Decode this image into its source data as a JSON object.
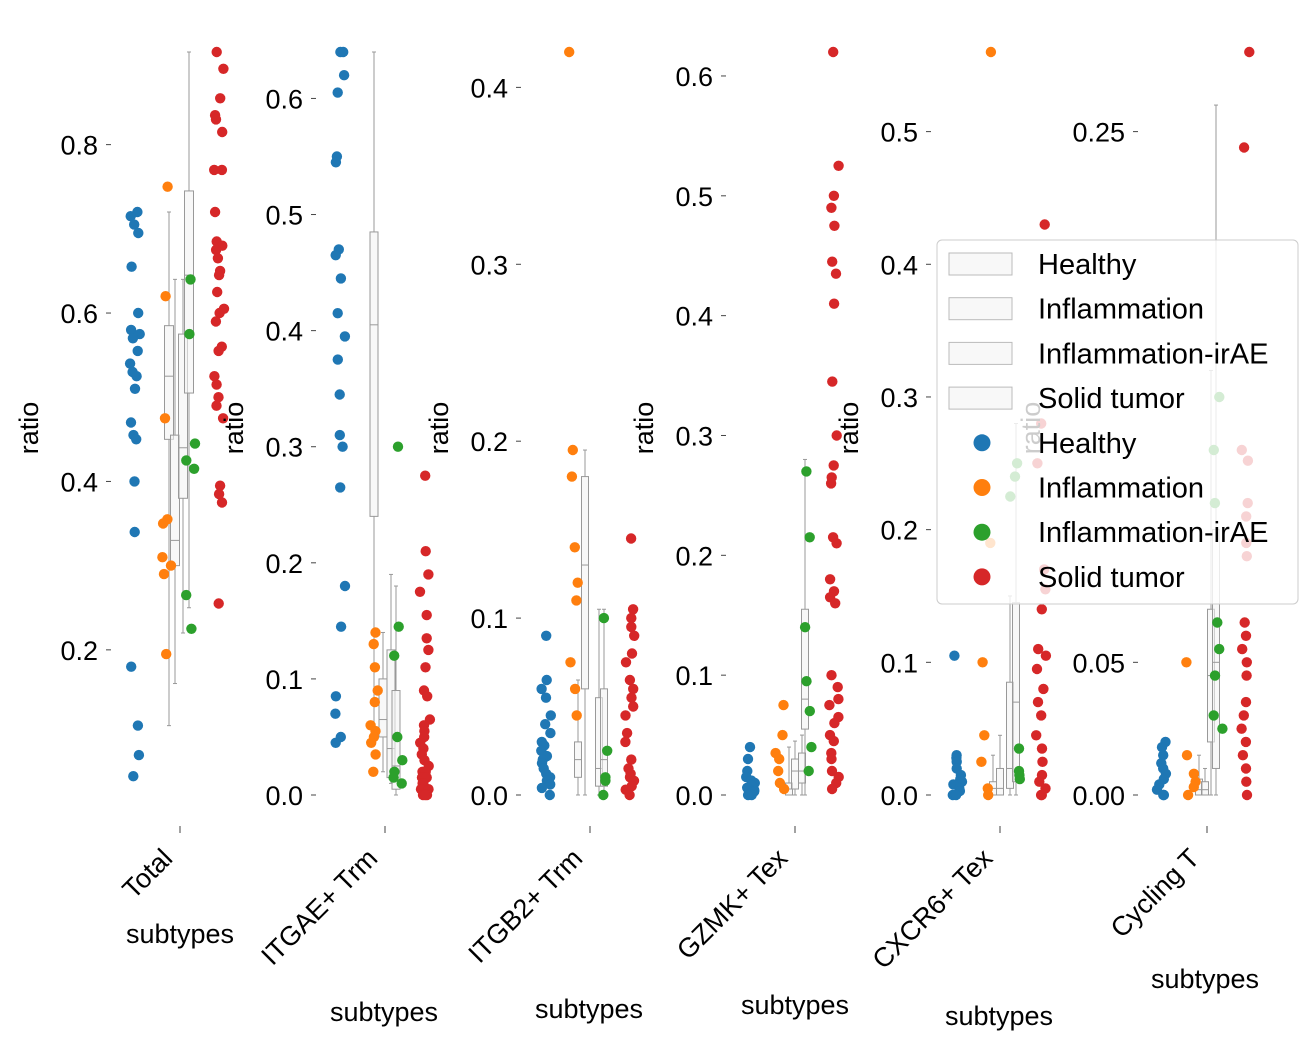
{
  "chart_data": {
    "type": "scatter",
    "groups": [
      "Healthy",
      "Inflammation",
      "Inflammation-irAE",
      "Solid tumor"
    ],
    "colors": {
      "Healthy": "#1f77b4",
      "Inflammation": "#ff7f0e",
      "Inflammation-irAE": "#2ca02c",
      "Solid tumor": "#d62728"
    },
    "legend": {
      "placement": "center-right",
      "box_entries": [
        "Healthy",
        "Inflammation",
        "Inflammation-irAE",
        "Solid tumor"
      ],
      "point_entries": [
        "Healthy",
        "Inflammation",
        "Inflammation-irAE",
        "Solid tumor"
      ]
    },
    "panels": [
      {
        "category": "Total",
        "xlabel": "subtypes",
        "ylabel": "ratio",
        "ylim": [
          0.03,
          0.91
        ],
        "yticks": [
          {
            "v": 0.2,
            "label": "0.2"
          },
          {
            "v": 0.4,
            "label": "0.4"
          },
          {
            "v": 0.6,
            "label": "0.6"
          },
          {
            "v": 0.8,
            "label": "0.8"
          }
        ],
        "boxes": {
          "Healthy": {
            "whislo": 0.11,
            "q1": 0.45,
            "med": 0.525,
            "q3": 0.585,
            "whishi": 0.72
          },
          "Inflammation": {
            "whislo": 0.16,
            "q1": 0.3,
            "med": 0.33,
            "q3": 0.455,
            "whishi": 0.64
          },
          "Inflammation-irAE": {
            "whislo": 0.22,
            "q1": 0.38,
            "med": 0.44,
            "q3": 0.575,
            "whishi": 0.64
          },
          "Solid tumor": {
            "whislo": 0.25,
            "q1": 0.505,
            "med": 0.645,
            "q3": 0.745,
            "whishi": 0.91
          }
        },
        "points": {
          "Healthy": [
            0.72,
            0.715,
            0.705,
            0.695,
            0.655,
            0.6,
            0.58,
            0.575,
            0.57,
            0.555,
            0.54,
            0.53,
            0.525,
            0.51,
            0.47,
            0.455,
            0.45,
            0.4,
            0.34,
            0.18,
            0.11,
            0.075,
            0.05
          ],
          "Inflammation": [
            0.75,
            0.62,
            0.475,
            0.355,
            0.35,
            0.31,
            0.3,
            0.29,
            0.195
          ],
          "Inflammation-irAE": [
            0.64,
            0.575,
            0.445,
            0.425,
            0.415,
            0.265,
            0.225
          ],
          "Solid tumor": [
            0.91,
            0.89,
            0.855,
            0.835,
            0.83,
            0.815,
            0.77,
            0.77,
            0.72,
            0.685,
            0.68,
            0.675,
            0.665,
            0.65,
            0.645,
            0.625,
            0.605,
            0.6,
            0.59,
            0.56,
            0.555,
            0.525,
            0.515,
            0.5,
            0.49,
            0.475,
            0.395,
            0.385,
            0.375,
            0.255
          ]
        }
      },
      {
        "category": "ITGAE+ Trm",
        "xlabel": "subtypes",
        "ylabel": "ratio",
        "ylim": [
          0,
          0.64
        ],
        "yticks": [
          {
            "v": 0.0,
            "label": "0.0"
          },
          {
            "v": 0.1,
            "label": "0.1"
          },
          {
            "v": 0.2,
            "label": "0.2"
          },
          {
            "v": 0.3,
            "label": "0.3"
          },
          {
            "v": 0.4,
            "label": "0.4"
          },
          {
            "v": 0.5,
            "label": "0.5"
          },
          {
            "v": 0.6,
            "label": "0.6"
          }
        ],
        "boxes": {
          "Healthy": {
            "whislo": 0.045,
            "q1": 0.24,
            "med": 0.405,
            "q3": 0.485,
            "whishi": 0.64
          },
          "Inflammation": {
            "whislo": 0.02,
            "q1": 0.05,
            "med": 0.065,
            "q3": 0.1,
            "whishi": 0.14
          },
          "Inflammation-irAE": {
            "whislo": 0.01,
            "q1": 0.015,
            "med": 0.04,
            "q3": 0.125,
            "whishi": 0.19
          },
          "Solid tumor": {
            "whislo": 0.0,
            "q1": 0.005,
            "med": 0.025,
            "q3": 0.09,
            "whishi": 0.18
          }
        },
        "points": {
          "Healthy": [
            0.64,
            0.64,
            0.62,
            0.605,
            0.55,
            0.545,
            0.47,
            0.465,
            0.445,
            0.415,
            0.395,
            0.375,
            0.345,
            0.31,
            0.3,
            0.265,
            0.18,
            0.145,
            0.085,
            0.07,
            0.05,
            0.045
          ],
          "Inflammation": [
            0.14,
            0.13,
            0.11,
            0.09,
            0.08,
            0.06,
            0.055,
            0.05,
            0.045,
            0.035,
            0.02
          ],
          "Inflammation-irAE": [
            0.3,
            0.145,
            0.12,
            0.05,
            0.03,
            0.02,
            0.015,
            0.01
          ],
          "Solid tumor": [
            0.275,
            0.21,
            0.19,
            0.175,
            0.155,
            0.135,
            0.125,
            0.11,
            0.09,
            0.085,
            0.065,
            0.06,
            0.055,
            0.05,
            0.045,
            0.04,
            0.035,
            0.03,
            0.025,
            0.02,
            0.02,
            0.015,
            0.015,
            0.01,
            0.01,
            0.005,
            0.005,
            0.0,
            0.0,
            0.0
          ]
        }
      },
      {
        "category": "ITGB2+ Trm",
        "xlabel": "subtypes",
        "ylabel": "ratio",
        "ylim": [
          0,
          0.42
        ],
        "yticks": [
          {
            "v": 0.0,
            "label": "0.0"
          },
          {
            "v": 0.1,
            "label": "0.1"
          },
          {
            "v": 0.2,
            "label": "0.2"
          },
          {
            "v": 0.3,
            "label": "0.3"
          },
          {
            "v": 0.4,
            "label": "0.4"
          }
        ],
        "boxes": {
          "Healthy": {
            "whislo": 0.0,
            "q1": 0.01,
            "med": 0.02,
            "q3": 0.03,
            "whishi": 0.065
          },
          "Inflammation": {
            "whislo": 0.0,
            "q1": 0.06,
            "med": 0.13,
            "q3": 0.18,
            "whishi": 0.195
          },
          "Inflammation-irAE": {
            "whislo": 0.0,
            "q1": 0.005,
            "med": 0.015,
            "q3": 0.055,
            "whishi": 0.105
          },
          "Solid tumor": {
            "whislo": 0.0,
            "q1": 0.005,
            "med": 0.02,
            "q3": 0.06,
            "whishi": 0.105
          }
        },
        "points": {
          "Healthy": [
            0.09,
            0.065,
            0.06,
            0.055,
            0.045,
            0.04,
            0.035,
            0.03,
            0.028,
            0.025,
            0.022,
            0.02,
            0.018,
            0.015,
            0.012,
            0.01,
            0.008,
            0.006,
            0.004,
            0.0
          ],
          "Inflammation": [
            0.42,
            0.195,
            0.18,
            0.14,
            0.12,
            0.11,
            0.075,
            0.06,
            0.045
          ],
          "Inflammation-irAE": [
            0.1,
            0.025,
            0.01,
            0.008,
            0.0
          ],
          "Solid tumor": [
            0.145,
            0.105,
            0.1,
            0.095,
            0.09,
            0.08,
            0.075,
            0.065,
            0.06,
            0.055,
            0.05,
            0.045,
            0.035,
            0.03,
            0.02,
            0.015,
            0.012,
            0.01,
            0.008,
            0.005,
            0.003,
            0.0
          ]
        }
      },
      {
        "category": "GZMK+ Tex",
        "xlabel": "subtypes",
        "ylabel": "ratio",
        "ylim": [
          0,
          0.62
        ],
        "yticks": [
          {
            "v": 0.0,
            "label": "0.0"
          },
          {
            "v": 0.1,
            "label": "0.1"
          },
          {
            "v": 0.2,
            "label": "0.2"
          },
          {
            "v": 0.3,
            "label": "0.3"
          },
          {
            "v": 0.4,
            "label": "0.4"
          },
          {
            "v": 0.5,
            "label": "0.5"
          },
          {
            "v": 0.6,
            "label": "0.6"
          }
        ],
        "boxes": {
          "Healthy": {
            "whislo": 0.0,
            "q1": 0.0,
            "med": 0.005,
            "q3": 0.01,
            "whishi": 0.04
          },
          "Inflammation": {
            "whislo": 0.0,
            "q1": 0.005,
            "med": 0.02,
            "q3": 0.03,
            "whishi": 0.045
          },
          "Inflammation-irAE": {
            "whislo": 0.0,
            "q1": 0.01,
            "med": 0.02,
            "q3": 0.035,
            "whishi": 0.05
          },
          "Solid tumor": {
            "whislo": 0.0,
            "q1": 0.055,
            "med": 0.08,
            "q3": 0.155,
            "whishi": 0.28
          }
        },
        "points": {
          "Healthy": [
            0.04,
            0.03,
            0.02,
            0.015,
            0.012,
            0.01,
            0.008,
            0.006,
            0.004,
            0.003,
            0.002,
            0.0,
            0.0
          ],
          "Inflammation": [
            0.075,
            0.05,
            0.035,
            0.03,
            0.02,
            0.01,
            0.005
          ],
          "Inflammation-irAE": [
            0.27,
            0.215,
            0.14,
            0.095,
            0.07,
            0.04,
            0.02
          ],
          "Solid tumor": [
            0.62,
            0.525,
            0.5,
            0.49,
            0.475,
            0.445,
            0.435,
            0.41,
            0.345,
            0.3,
            0.275,
            0.265,
            0.26,
            0.215,
            0.21,
            0.18,
            0.17,
            0.165,
            0.16,
            0.1,
            0.09,
            0.08,
            0.075,
            0.065,
            0.06,
            0.05,
            0.045,
            0.035,
            0.03,
            0.02,
            0.015,
            0.01,
            0.005
          ]
        }
      },
      {
        "category": "CXCR6+ Tex",
        "xlabel": "subtypes",
        "ylabel": "ratio",
        "ylim": [
          0,
          0.56
        ],
        "yticks": [
          {
            "v": 0.0,
            "label": "0.0"
          },
          {
            "v": 0.1,
            "label": "0.1"
          },
          {
            "v": 0.2,
            "label": "0.2"
          },
          {
            "v": 0.3,
            "label": "0.3"
          },
          {
            "v": 0.4,
            "label": "0.4"
          },
          {
            "v": 0.5,
            "label": "0.5"
          }
        ],
        "boxes": {
          "Healthy": {
            "whislo": 0.0,
            "q1": 0.0,
            "med": 0.005,
            "q3": 0.01,
            "whishi": 0.03
          },
          "Inflammation": {
            "whislo": 0.0,
            "q1": 0.0,
            "med": 0.005,
            "q3": 0.02,
            "whishi": 0.045
          },
          "Inflammation-irAE": {
            "whislo": 0.0,
            "q1": 0.005,
            "med": 0.02,
            "q3": 0.085,
            "whishi": 0.15
          },
          "Solid tumor": {
            "whislo": 0.0,
            "q1": 0.01,
            "med": 0.07,
            "q3": 0.145,
            "whishi": 0.28
          }
        },
        "points": {
          "Healthy": [
            0.105,
            0.03,
            0.028,
            0.025,
            0.02,
            0.015,
            0.012,
            0.01,
            0.008,
            0.005,
            0.003,
            0.0,
            0.0
          ],
          "Inflammation": [
            0.56,
            0.19,
            0.1,
            0.045,
            0.025,
            0.005,
            0.0
          ],
          "Inflammation-irAE": [
            0.25,
            0.24,
            0.225,
            0.035,
            0.018,
            0.015,
            0.012
          ],
          "Solid tumor": [
            0.43,
            0.28,
            0.25,
            0.17,
            0.155,
            0.14,
            0.11,
            0.105,
            0.095,
            0.08,
            0.07,
            0.06,
            0.045,
            0.035,
            0.025,
            0.015,
            0.01,
            0.005,
            0.0,
            0.0
          ]
        }
      },
      {
        "category": "Cycling T",
        "xlabel": "subtypes",
        "ylabel": "ratio",
        "ylim": [
          0,
          0.28
        ],
        "yticks": [
          {
            "v": 0.0,
            "label": "0.00"
          },
          {
            "v": 0.05,
            "label": "0.05"
          },
          {
            "v": 0.25,
            "label": "0.25"
          }
        ],
        "boxes": {
          "Healthy": {
            "whislo": 0.0,
            "q1": 0.0,
            "med": 0.002,
            "q3": 0.006,
            "whishi": 0.015
          },
          "Inflammation": {
            "whislo": 0.0,
            "q1": 0.0,
            "med": 0.002,
            "q3": 0.005,
            "whishi": 0.01
          },
          "Inflammation-irAE": {
            "whislo": 0.0,
            "q1": 0.02,
            "med": 0.045,
            "q3": 0.07,
            "whishi": 0.16
          },
          "Solid tumor": {
            "whislo": 0.0,
            "q1": 0.01,
            "med": 0.05,
            "q3": 0.1,
            "whishi": 0.26
          }
        },
        "points": {
          "Healthy": [
            0.02,
            0.018,
            0.015,
            0.012,
            0.01,
            0.008,
            0.006,
            0.004,
            0.002,
            0.0,
            0.0
          ],
          "Inflammation": [
            0.05,
            0.015,
            0.008,
            0.005,
            0.003,
            0.0
          ],
          "Inflammation-irAE": [
            0.15,
            0.13,
            0.11,
            0.065,
            0.055,
            0.045,
            0.03,
            0.025
          ],
          "Solid tumor": [
            0.28,
            0.244,
            0.13,
            0.126,
            0.11,
            0.105,
            0.095,
            0.09,
            0.065,
            0.06,
            0.055,
            0.05,
            0.045,
            0.035,
            0.03,
            0.025,
            0.02,
            0.015,
            0.01,
            0.005,
            0.0
          ]
        }
      }
    ]
  }
}
